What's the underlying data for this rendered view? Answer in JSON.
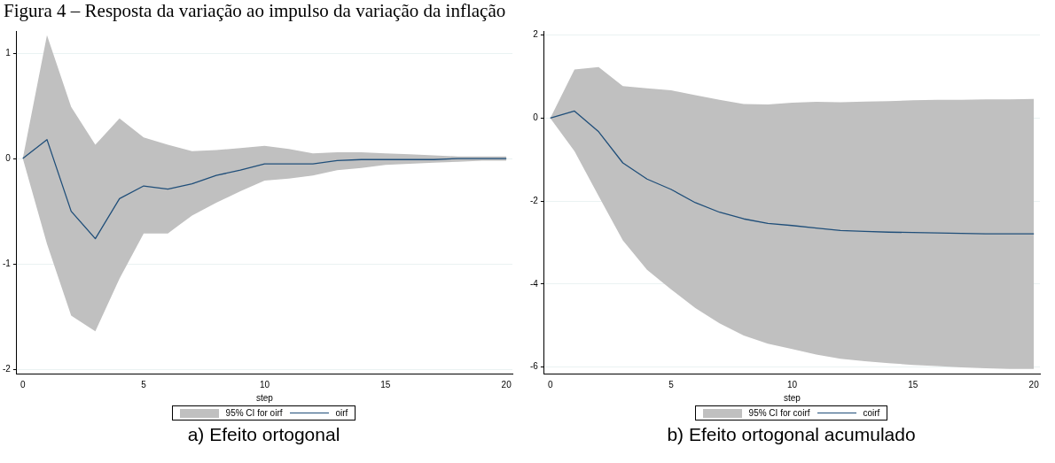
{
  "chart_data": [
    {
      "type": "line",
      "title": "Figura 4 – Resposta da variação ao impulso da variação da inflação",
      "xlabel": "step",
      "x": [
        0,
        1,
        2,
        3,
        4,
        5,
        6,
        7,
        8,
        9,
        10,
        11,
        12,
        13,
        14,
        15,
        16,
        17,
        18,
        19,
        20
      ],
      "xlim": [
        -0.25,
        20.25
      ],
      "xticks": [
        0,
        5,
        10,
        15,
        20
      ],
      "ylim": [
        -2.04,
        1.21
      ],
      "yticks": [
        -2,
        -1,
        0,
        1
      ],
      "grid": "y",
      "legend": "bottom",
      "annotations": [
        "a) Efeito ortogonal",
        "95% CI for oirf"
      ],
      "series": [
        {
          "name": "oirf",
          "type": "line",
          "color": "#1f4e79",
          "values": [
            0,
            0.18,
            -0.5,
            -0.76,
            -0.38,
            -0.26,
            -0.29,
            -0.24,
            -0.16,
            -0.11,
            -0.05,
            -0.05,
            -0.05,
            -0.02,
            -0.01,
            -0.01,
            -0.01,
            -0.01,
            0,
            0,
            0
          ],
          "lower": [
            0,
            -0.81,
            -1.49,
            -1.64,
            -1.14,
            -0.71,
            -0.71,
            -0.54,
            -0.42,
            -0.31,
            -0.21,
            -0.19,
            -0.16,
            -0.11,
            -0.09,
            -0.06,
            -0.05,
            -0.04,
            -0.03,
            -0.02,
            -0.02
          ],
          "upper": [
            0,
            1.17,
            0.49,
            0.13,
            0.38,
            0.2,
            0.13,
            0.07,
            0.08,
            0.1,
            0.12,
            0.09,
            0.05,
            0.06,
            0.06,
            0.05,
            0.04,
            0.03,
            0.02,
            0.02,
            0.02
          ]
        }
      ]
    },
    {
      "type": "line",
      "xlabel": "step",
      "x": [
        0,
        1,
        2,
        3,
        4,
        5,
        6,
        7,
        8,
        9,
        10,
        11,
        12,
        13,
        14,
        15,
        16,
        17,
        18,
        19,
        20
      ],
      "xlim": [
        -0.25,
        20.25
      ],
      "xticks": [
        0,
        5,
        10,
        15,
        20
      ],
      "ylim": [
        -6.16,
        2.1
      ],
      "yticks": [
        -6,
        -4,
        -2,
        0,
        2
      ],
      "grid": "y",
      "legend": "bottom",
      "annotations": [
        "b) Efeito ortogonal acumulado",
        "95% CI for coirf"
      ],
      "series": [
        {
          "name": "coirf",
          "type": "line",
          "color": "#1f4e79",
          "values": [
            0,
            0.17,
            -0.33,
            -1.08,
            -1.47,
            -1.72,
            -2.04,
            -2.27,
            -2.43,
            -2.54,
            -2.59,
            -2.65,
            -2.71,
            -2.73,
            -2.75,
            -2.76,
            -2.77,
            -2.78,
            -2.79,
            -2.79,
            -2.79
          ],
          "lower": [
            0,
            -0.8,
            -1.88,
            -2.95,
            -3.66,
            -4.13,
            -4.58,
            -4.95,
            -5.24,
            -5.44,
            -5.57,
            -5.7,
            -5.8,
            -5.86,
            -5.91,
            -5.95,
            -5.98,
            -6.01,
            -6.03,
            -6.05,
            -6.05
          ],
          "upper": [
            0,
            1.17,
            1.23,
            0.77,
            0.72,
            0.67,
            0.55,
            0.44,
            0.34,
            0.33,
            0.37,
            0.39,
            0.38,
            0.4,
            0.41,
            0.43,
            0.44,
            0.44,
            0.45,
            0.45,
            0.46
          ]
        }
      ]
    }
  ]
}
